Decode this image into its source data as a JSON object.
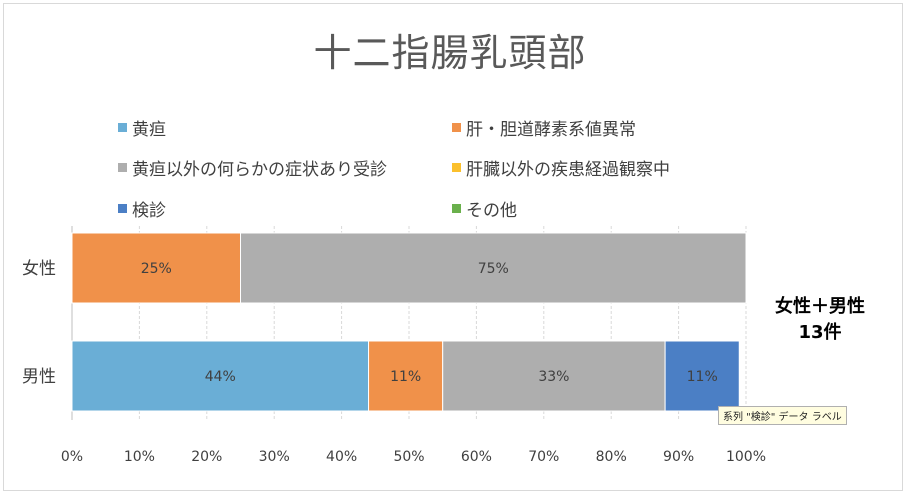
{
  "chart_data": {
    "type": "bar",
    "orientation": "horizontal",
    "stacked": "percent",
    "title": "十二指腸乳頭部",
    "categories": [
      "女性",
      "男性"
    ],
    "series": [
      {
        "name": "黄疸",
        "color": "#6aaed6",
        "values": [
          0,
          44
        ],
        "labels": [
          "",
          "44%"
        ]
      },
      {
        "name": "肝・胆道酵素系値異常",
        "color": "#f0914a",
        "values": [
          25,
          11
        ],
        "labels": [
          "25%",
          "11%"
        ]
      },
      {
        "name": "黄疸以外の何らかの症状あり受診",
        "color": "#aeaeae",
        "values": [
          75,
          33
        ],
        "labels": [
          "75%",
          "33%"
        ]
      },
      {
        "name": "肝臓以外の疾患経過観察中",
        "color": "#fbc02d",
        "values": [
          0,
          0
        ],
        "labels": [
          "",
          ""
        ]
      },
      {
        "name": "検診",
        "color": "#4b7fc5",
        "values": [
          0,
          11
        ],
        "labels": [
          "",
          "11%"
        ]
      },
      {
        "name": "その他",
        "color": "#6ab04c",
        "values": [
          0,
          0
        ],
        "labels": [
          "",
          ""
        ]
      }
    ],
    "x_ticks": [
      "0%",
      "10%",
      "20%",
      "30%",
      "40%",
      "50%",
      "60%",
      "70%",
      "80%",
      "90%",
      "100%"
    ],
    "xlim": [
      0,
      100
    ],
    "grid": true,
    "legend_position": "top"
  },
  "annotation": {
    "line1": "女性＋男性",
    "line2": "13件"
  },
  "tooltip": "系列 \"検診\" データ ラベル"
}
